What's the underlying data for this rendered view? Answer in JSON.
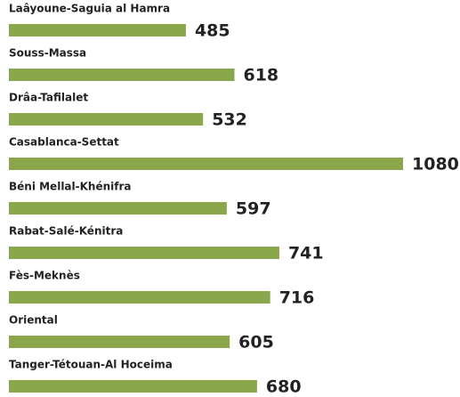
{
  "chart_data": {
    "type": "bar",
    "categories": [
      "Laâyoune-Saguia al Hamra",
      "Souss-Massa",
      "Drâa-Tafilalet",
      "Casablanca-Settat",
      "Béni Mellal-Khénifra",
      "Rabat-Salé-Kénitra",
      "Fès-Meknès",
      "Oriental",
      "Tanger-Tétouan-Al Hoceima"
    ],
    "values": [
      485,
      618,
      532,
      1080,
      597,
      741,
      716,
      605,
      680
    ],
    "color": "#8aa84b"
  }
}
